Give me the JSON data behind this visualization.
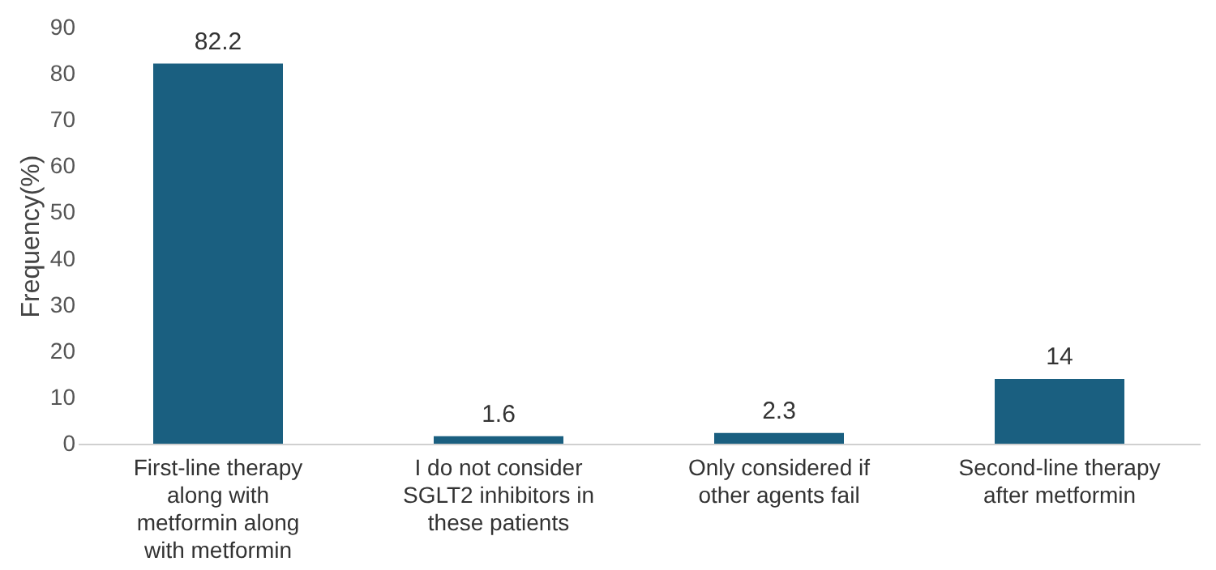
{
  "chart_data": {
    "type": "bar",
    "ylabel": "Frequency(%)",
    "categories": [
      "First-line therapy along with metformin along with metformin",
      "I do not consider SGLT2 inhibitors in these patients",
      "Only considered if other agents fail",
      "Second-line therapy after metformin"
    ],
    "values": [
      82.2,
      1.6,
      2.3,
      14
    ],
    "color": "#1a5f80",
    "ylim": [
      0,
      90
    ],
    "yticks": [
      0,
      10,
      20,
      30,
      40,
      50,
      60,
      70,
      80,
      90
    ],
    "grid": false,
    "data_labels": true
  }
}
